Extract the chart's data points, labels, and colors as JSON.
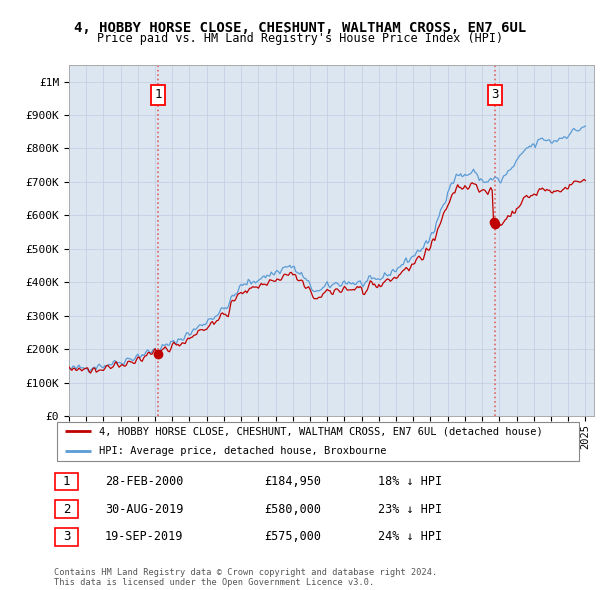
{
  "title": "4, HOBBY HORSE CLOSE, CHESHUNT, WALTHAM CROSS, EN7 6UL",
  "subtitle": "Price paid vs. HM Land Registry's House Price Index (HPI)",
  "ylabel_ticks": [
    "£0",
    "£100K",
    "£200K",
    "£300K",
    "£400K",
    "£500K",
    "£600K",
    "£700K",
    "£800K",
    "£900K",
    "£1M"
  ],
  "ytick_vals": [
    0,
    100000,
    200000,
    300000,
    400000,
    500000,
    600000,
    700000,
    800000,
    900000,
    1000000
  ],
  "ylim": [
    0,
    1050000
  ],
  "xlim_start": 1995.0,
  "xlim_end": 2025.5,
  "legend_line1": "4, HOBBY HORSE CLOSE, CHESHUNT, WALTHAM CROSS, EN7 6UL (detached house)",
  "legend_line2": "HPI: Average price, detached house, Broxbourne",
  "sale1_label": "1",
  "sale1_date": "28-FEB-2000",
  "sale1_price": "£184,950",
  "sale1_hpi": "18% ↓ HPI",
  "sale2_label": "2",
  "sale2_date": "30-AUG-2019",
  "sale2_price": "£580,000",
  "sale2_hpi": "23% ↓ HPI",
  "sale3_label": "3",
  "sale3_date": "19-SEP-2019",
  "sale3_price": "£575,000",
  "sale3_hpi": "24% ↓ HPI",
  "footer": "Contains HM Land Registry data © Crown copyright and database right 2024.\nThis data is licensed under the Open Government Licence v3.0.",
  "hpi_color": "#5b9bd5",
  "price_color": "#c00000",
  "vline_color": "#e06060",
  "background_color": "#dce6f1",
  "grid_color": "#c0cce0"
}
